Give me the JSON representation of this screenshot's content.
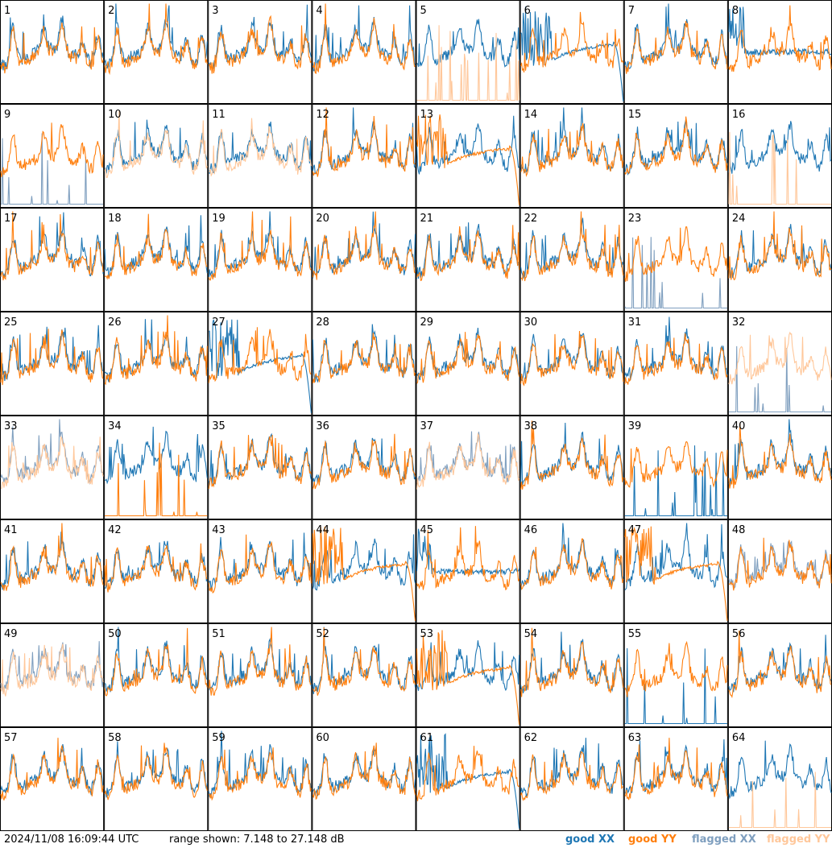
{
  "chart_data": {
    "type": "line",
    "grid_rows": 8,
    "grid_cols": 8,
    "panels": [
      {
        "id": "1",
        "xx": "good",
        "yy": "good",
        "shape": "normal"
      },
      {
        "id": "2",
        "xx": "good",
        "yy": "good",
        "shape": "normal"
      },
      {
        "id": "3",
        "xx": "good",
        "yy": "good",
        "shape": "normal"
      },
      {
        "id": "4",
        "xx": "good",
        "yy": "good",
        "shape": "normal"
      },
      {
        "id": "5",
        "xx": "good",
        "yy": "flagged",
        "shape": "yy_spikes"
      },
      {
        "id": "6",
        "xx": "good",
        "yy": "good",
        "shape": "xx_decay"
      },
      {
        "id": "7",
        "xx": "good",
        "yy": "good",
        "shape": "normal"
      },
      {
        "id": "8",
        "xx": "good",
        "yy": "good",
        "shape": "flat"
      },
      {
        "id": "9",
        "xx": "flagged",
        "yy": "good",
        "shape": "xx_spikes"
      },
      {
        "id": "10",
        "xx": "good",
        "yy": "flagged",
        "shape": "normal"
      },
      {
        "id": "11",
        "xx": "good",
        "yy": "flagged",
        "shape": "normal"
      },
      {
        "id": "12",
        "xx": "good",
        "yy": "good",
        "shape": "normal"
      },
      {
        "id": "13",
        "xx": "good",
        "yy": "good",
        "shape": "yy_decay"
      },
      {
        "id": "14",
        "xx": "good",
        "yy": "good",
        "shape": "normal"
      },
      {
        "id": "15",
        "xx": "good",
        "yy": "good",
        "shape": "normal"
      },
      {
        "id": "16",
        "xx": "good",
        "yy": "flagged",
        "shape": "yy_spikes"
      },
      {
        "id": "17",
        "xx": "good",
        "yy": "good",
        "shape": "normal"
      },
      {
        "id": "18",
        "xx": "good",
        "yy": "good",
        "shape": "normal"
      },
      {
        "id": "19",
        "xx": "good",
        "yy": "good",
        "shape": "normal"
      },
      {
        "id": "20",
        "xx": "good",
        "yy": "good",
        "shape": "normal"
      },
      {
        "id": "21",
        "xx": "good",
        "yy": "good",
        "shape": "normal"
      },
      {
        "id": "22",
        "xx": "good",
        "yy": "good",
        "shape": "normal"
      },
      {
        "id": "23",
        "xx": "flagged",
        "yy": "good",
        "shape": "xx_spikes"
      },
      {
        "id": "24",
        "xx": "good",
        "yy": "good",
        "shape": "normal"
      },
      {
        "id": "25",
        "xx": "good",
        "yy": "good",
        "shape": "normal"
      },
      {
        "id": "26",
        "xx": "good",
        "yy": "good",
        "shape": "normal"
      },
      {
        "id": "27",
        "xx": "good",
        "yy": "good",
        "shape": "xx_decay"
      },
      {
        "id": "28",
        "xx": "good",
        "yy": "good",
        "shape": "normal"
      },
      {
        "id": "29",
        "xx": "good",
        "yy": "good",
        "shape": "normal"
      },
      {
        "id": "30",
        "xx": "good",
        "yy": "good",
        "shape": "normal"
      },
      {
        "id": "31",
        "xx": "good",
        "yy": "good",
        "shape": "normal"
      },
      {
        "id": "32",
        "xx": "flagged",
        "yy": "flagged",
        "shape": "xx_spikes"
      },
      {
        "id": "33",
        "xx": "flagged",
        "yy": "flagged",
        "shape": "normal"
      },
      {
        "id": "34",
        "xx": "good",
        "yy": "good",
        "shape": "yy_spikes"
      },
      {
        "id": "35",
        "xx": "good",
        "yy": "good",
        "shape": "normal"
      },
      {
        "id": "36",
        "xx": "good",
        "yy": "good",
        "shape": "normal"
      },
      {
        "id": "37",
        "xx": "flagged",
        "yy": "flagged",
        "shape": "normal"
      },
      {
        "id": "38",
        "xx": "good",
        "yy": "good",
        "shape": "normal"
      },
      {
        "id": "39",
        "xx": "good",
        "yy": "good",
        "shape": "xx_spikes"
      },
      {
        "id": "40",
        "xx": "good",
        "yy": "good",
        "shape": "normal"
      },
      {
        "id": "41",
        "xx": "good",
        "yy": "good",
        "shape": "normal"
      },
      {
        "id": "42",
        "xx": "good",
        "yy": "good",
        "shape": "normal"
      },
      {
        "id": "43",
        "xx": "good",
        "yy": "good",
        "shape": "normal"
      },
      {
        "id": "44",
        "xx": "good",
        "yy": "good",
        "shape": "yy_decay"
      },
      {
        "id": "45",
        "xx": "good",
        "yy": "good",
        "shape": "flat"
      },
      {
        "id": "46",
        "xx": "good",
        "yy": "good",
        "shape": "normal"
      },
      {
        "id": "47",
        "xx": "good",
        "yy": "good",
        "shape": "yy_decay"
      },
      {
        "id": "48",
        "xx": "flagged",
        "yy": "good",
        "shape": "normal"
      },
      {
        "id": "49",
        "xx": "flagged",
        "yy": "flagged",
        "shape": "normal"
      },
      {
        "id": "50",
        "xx": "good",
        "yy": "good",
        "shape": "normal"
      },
      {
        "id": "51",
        "xx": "good",
        "yy": "good",
        "shape": "normal"
      },
      {
        "id": "52",
        "xx": "good",
        "yy": "good",
        "shape": "normal"
      },
      {
        "id": "53",
        "xx": "good",
        "yy": "good",
        "shape": "yy_decay"
      },
      {
        "id": "54",
        "xx": "good",
        "yy": "good",
        "shape": "normal"
      },
      {
        "id": "55",
        "xx": "good",
        "yy": "good",
        "shape": "xx_spikes"
      },
      {
        "id": "56",
        "xx": "good",
        "yy": "good",
        "shape": "normal"
      },
      {
        "id": "57",
        "xx": "good",
        "yy": "good",
        "shape": "normal"
      },
      {
        "id": "58",
        "xx": "good",
        "yy": "good",
        "shape": "normal"
      },
      {
        "id": "59",
        "xx": "good",
        "yy": "good",
        "shape": "normal"
      },
      {
        "id": "60",
        "xx": "good",
        "yy": "good",
        "shape": "normal"
      },
      {
        "id": "61",
        "xx": "good",
        "yy": "good",
        "shape": "xx_decay"
      },
      {
        "id": "62",
        "xx": "good",
        "yy": "good",
        "shape": "normal"
      },
      {
        "id": "63",
        "xx": "good",
        "yy": "good",
        "shape": "normal"
      },
      {
        "id": "64",
        "xx": "good",
        "yy": "flagged",
        "shape": "yy_spikes"
      }
    ],
    "y_range_db": [
      7.148,
      27.148
    ],
    "colors": {
      "good_xx": "#1f77b4",
      "good_yy": "#ff7f0e",
      "flagged_xx": "#7f9fbf",
      "flagged_yy": "#ffc79a"
    }
  },
  "footer": {
    "timestamp": "2024/11/08 16:09:44 UTC",
    "range_text": "range shown: 7.148 to 27.148 dB",
    "legend": {
      "good_xx": "good XX",
      "good_yy": "good YY",
      "flagged_xx": "flagged XX",
      "flagged_yy": "flagged YY"
    }
  }
}
